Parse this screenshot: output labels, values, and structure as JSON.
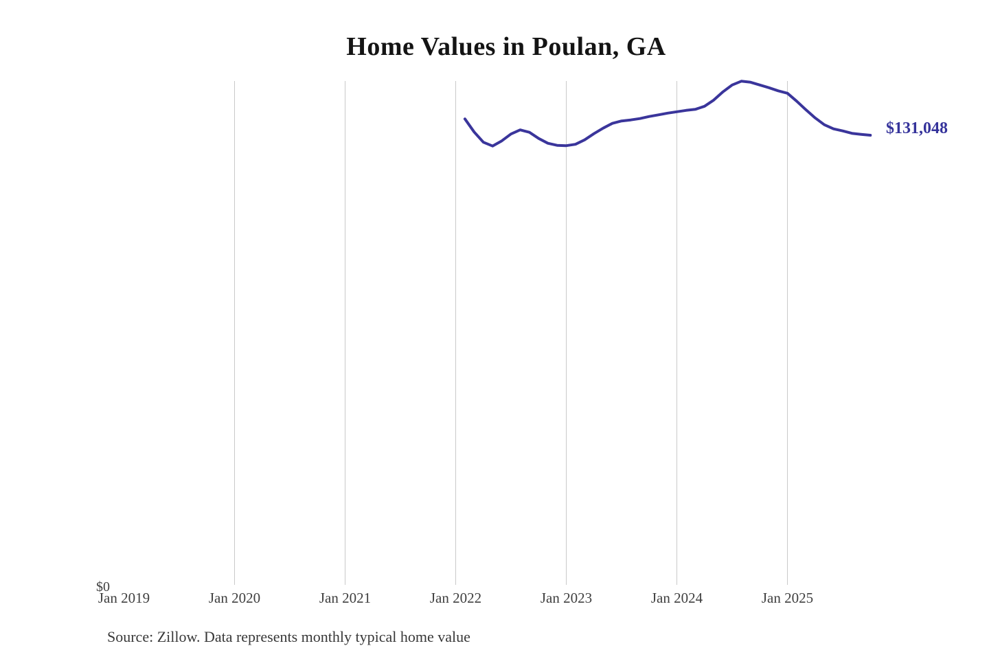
{
  "chart": {
    "title": "Home Values in Poulan, GA",
    "end_label": "$131,048",
    "zero_label": "$0",
    "source": "Source: Zillow. Data represents monthly typical home value",
    "line_color": "#3a359b",
    "end_label_color": "#35339b",
    "gridline_color": "#c9c9c9",
    "axis_text_color": "#3f3f3f"
  },
  "chart_data": {
    "type": "line",
    "title": "Home Values in Poulan, GA",
    "series_name": "Monthly typical home value",
    "xlabel": "",
    "ylabel": "",
    "ylim": [
      0,
      147000
    ],
    "grid": "vertical-only",
    "legend": "none",
    "x_tick_labels": [
      "Jan 2019",
      "Jan 2020",
      "Jan 2021",
      "Jan 2022",
      "Jan 2023",
      "Jan 2024",
      "Jan 2025"
    ],
    "gridline_months": [
      "2020-01",
      "2021-01",
      "2022-01",
      "2023-01",
      "2024-01",
      "2025-01"
    ],
    "y_tick_labels": [
      "$0"
    ],
    "last_point_label": "$131,048",
    "x": [
      "2022-02",
      "2022-03",
      "2022-04",
      "2022-05",
      "2022-06",
      "2022-07",
      "2022-08",
      "2022-09",
      "2022-10",
      "2022-11",
      "2022-12",
      "2023-01",
      "2023-02",
      "2023-03",
      "2023-04",
      "2023-05",
      "2023-06",
      "2023-07",
      "2023-08",
      "2023-09",
      "2023-10",
      "2023-11",
      "2023-12",
      "2024-01",
      "2024-02",
      "2024-03",
      "2024-04",
      "2024-05",
      "2024-06",
      "2024-07",
      "2024-08",
      "2024-09",
      "2024-10",
      "2024-11",
      "2024-12",
      "2025-01",
      "2025-02",
      "2025-03",
      "2025-04",
      "2025-05",
      "2025-06",
      "2025-07",
      "2025-08",
      "2025-09",
      "2025-10"
    ],
    "values": [
      135800,
      132000,
      129000,
      127900,
      129400,
      131400,
      132600,
      131900,
      130100,
      128700,
      128100,
      128000,
      128400,
      129700,
      131500,
      133100,
      134500,
      135200,
      135500,
      135900,
      136500,
      137000,
      137500,
      137900,
      138300,
      138600,
      139500,
      141300,
      143700,
      145700,
      146800,
      146500,
      145700,
      144900,
      144000,
      143300,
      141000,
      138500,
      136100,
      134100,
      132900,
      132300,
      131600,
      131300,
      131048
    ]
  }
}
